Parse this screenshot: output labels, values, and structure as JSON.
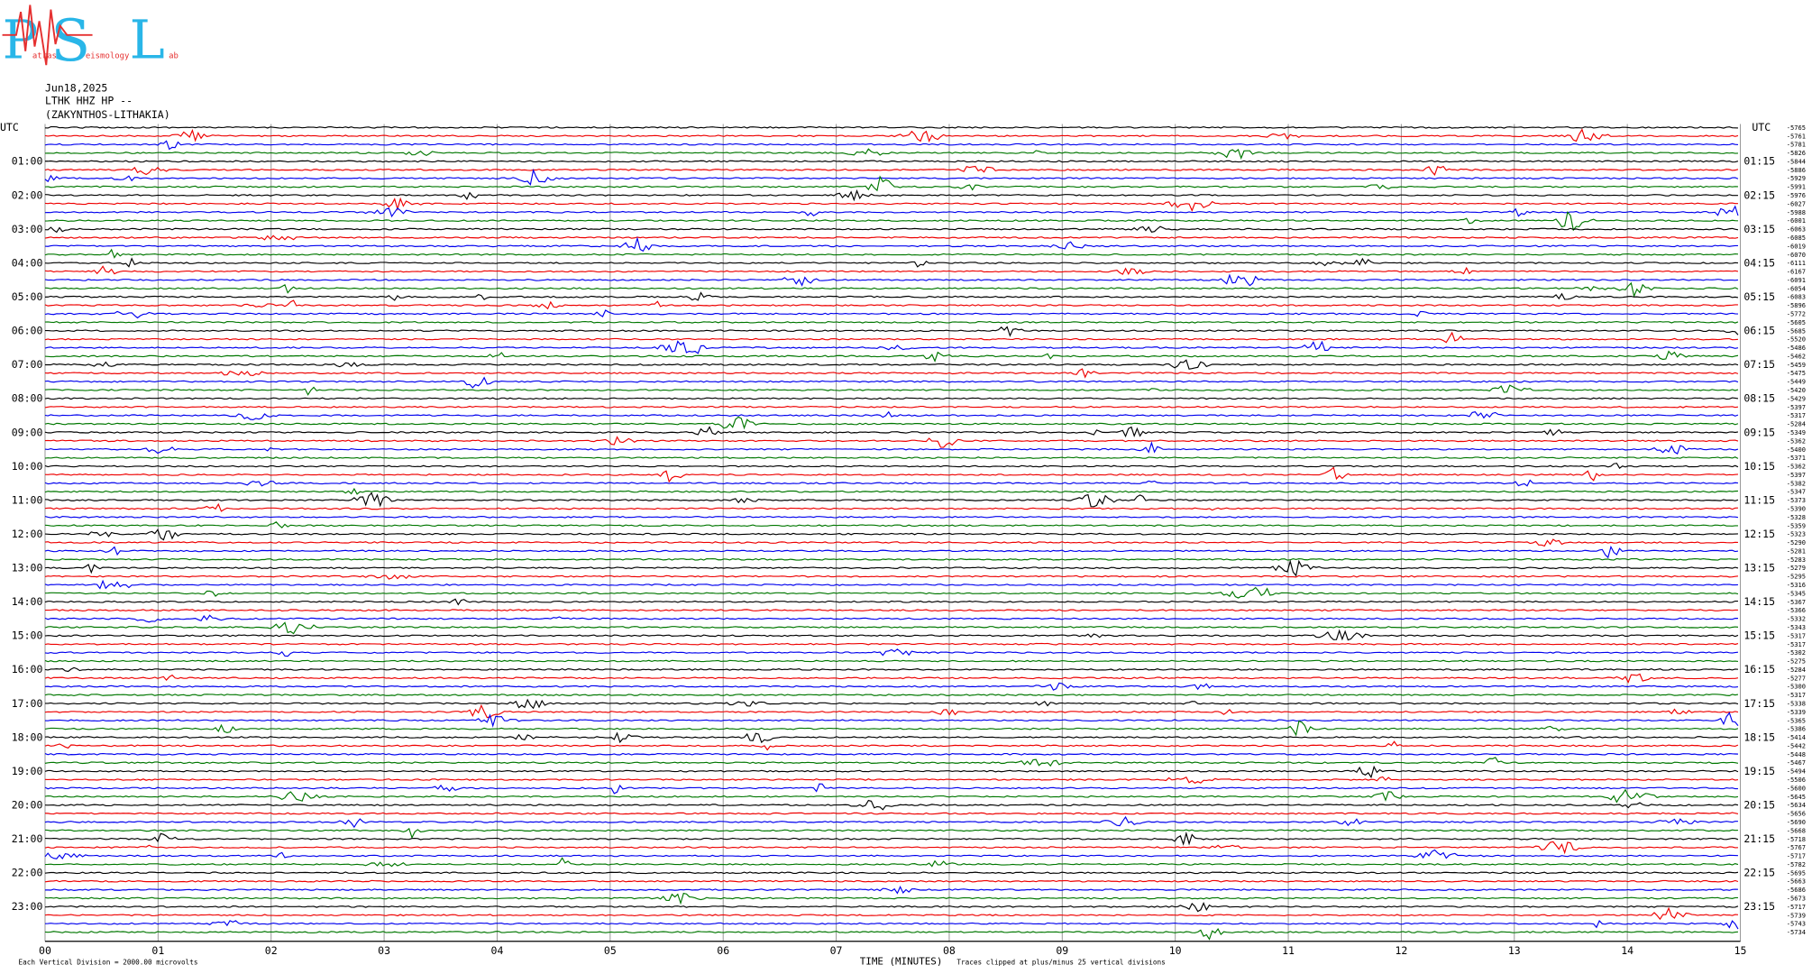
{
  "logo": {
    "p": "P",
    "s": "S",
    "l": "L",
    "small": [
      "atras",
      "eismology",
      "ab"
    ]
  },
  "header": {
    "date": "Jun18,2025",
    "station": "LTHK HHZ HP --",
    "location": "(ZAKYNTHOS-LITHAKIA)"
  },
  "left_labels": [
    "UTC",
    "01:00",
    "02:00",
    "03:00",
    "04:00",
    "05:00",
    "06:00",
    "07:00",
    "08:00",
    "09:00",
    "10:00",
    "11:00",
    "12:00",
    "13:00",
    "14:00",
    "15:00",
    "16:00",
    "17:00",
    "18:00",
    "19:00",
    "20:00",
    "21:00",
    "22:00",
    "23:00"
  ],
  "right_labels": [
    "UTC",
    "01:15",
    "02:15",
    "03:15",
    "04:15",
    "05:15",
    "06:15",
    "07:15",
    "08:15",
    "09:15",
    "10:15",
    "11:15",
    "12:15",
    "13:15",
    "14:15",
    "15:15",
    "16:15",
    "17:15",
    "18:15",
    "19:15",
    "20:15",
    "21:15",
    "22:15",
    "23:15"
  ],
  "trace_offsets": [
    "-5765",
    "-5761",
    "-5781",
    "-5826",
    "-5844",
    "-5886",
    "-5929",
    "-5991",
    "-5976",
    "-6027",
    "-5988",
    "-6001",
    "-6063",
    "-6085",
    "-6019",
    "-6070",
    "-6111",
    "-6167",
    "-6091",
    "-6054",
    "-6083",
    "-5896",
    "-5772",
    "-5605",
    "-5685",
    "-5520",
    "-5486",
    "-5462",
    "-5459",
    "-5475",
    "-5449",
    "-5420",
    "-5429",
    "-5397",
    "-5317",
    "-5284",
    "-5349",
    "-5362",
    "-5400",
    "-5371",
    "-5362",
    "-5397",
    "-5382",
    "-5347",
    "-5373",
    "-5390",
    "-5328",
    "-5359",
    "-5323",
    "-5290",
    "-5281",
    "-5283",
    "-5279",
    "-5295",
    "-5316",
    "-5345",
    "-5367",
    "-5366",
    "-5332",
    "-5343",
    "-5317",
    "-5317",
    "-5302",
    "-5275",
    "-5284",
    "-5277",
    "-5300",
    "-5317",
    "-5338",
    "-5339",
    "-5365",
    "-5386",
    "-5414",
    "-5442",
    "-5448",
    "-5467",
    "-5494",
    "-5506",
    "-5600",
    "-5645",
    "-5634",
    "-5656",
    "-5690",
    "-5668",
    "-5718",
    "-5767",
    "-5717",
    "-5782",
    "-5695",
    "-5663",
    "-5686",
    "-5673",
    "-5717",
    "-5739",
    "-5743",
    "-5734"
  ],
  "x_ticks": [
    "00",
    "01",
    "02",
    "03",
    "04",
    "05",
    "06",
    "07",
    "08",
    "09",
    "10",
    "11",
    "12",
    "13",
    "14",
    "15"
  ],
  "footer": {
    "division": "Each Vertical Division = 2000.00 microvolts",
    "axis_title": "TIME (MINUTES)",
    "clip_note": "Traces clipped at plus/minus 25 vertical divisions"
  }
}
